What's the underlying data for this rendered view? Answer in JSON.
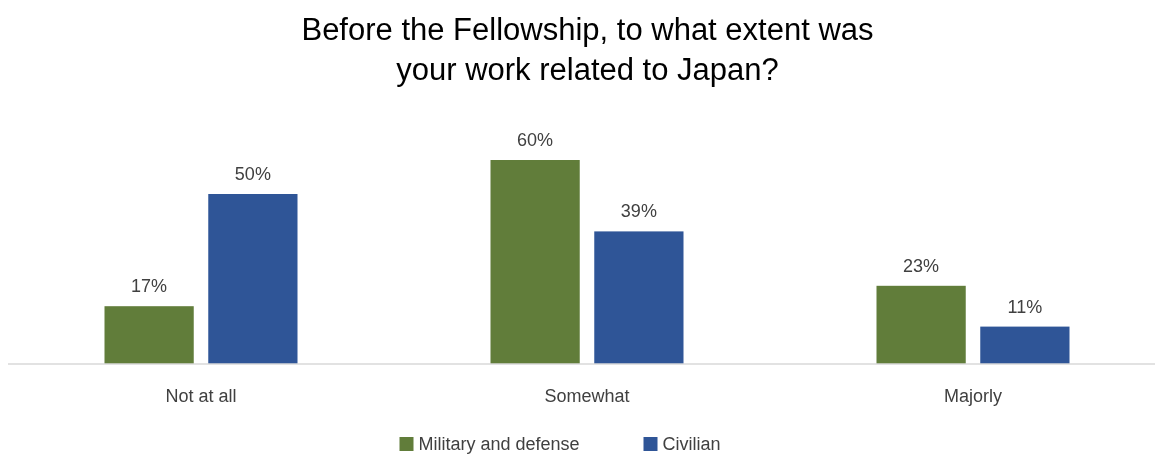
{
  "chart_data": {
    "type": "bar",
    "title": "Before the Fellowship, to what extent was your work related to Japan?",
    "categories": [
      "Not at all",
      "Somewhat",
      "Majorly"
    ],
    "series": [
      {
        "name": "Military and defense",
        "color": "#617d3a",
        "values": [
          17,
          60,
          23
        ],
        "value_labels": [
          "17%",
          "60%",
          "23%"
        ]
      },
      {
        "name": "Civilian",
        "color": "#2f5597",
        "values": [
          50,
          39,
          11
        ],
        "value_labels": [
          "50%",
          "39%",
          "11%"
        ]
      }
    ],
    "legend": "bottom"
  }
}
